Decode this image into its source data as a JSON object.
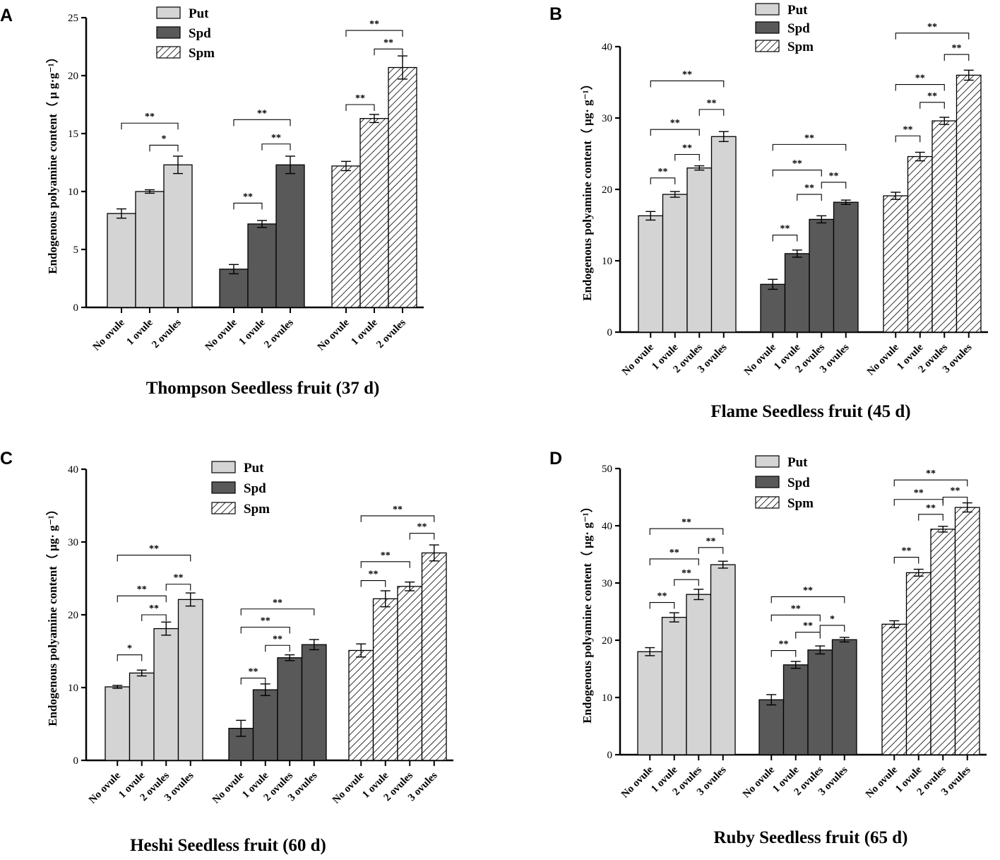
{
  "figure": {
    "panel_count": 4
  },
  "chart_data": [
    {
      "panel_label": "A",
      "type": "bar",
      "title": "Thompson Seedless fruit (37 d)",
      "ylabel": "Endogenous polyamine content（ μ g·g⁻¹）",
      "ylim": [
        0,
        25
      ],
      "yticks": [
        0,
        5,
        10,
        15,
        20,
        25
      ],
      "legend": [
        "Put",
        "Spd",
        "Spm"
      ],
      "legend_position": "top-center",
      "groups": [
        {
          "name": "Put",
          "categories": [
            "No ovule",
            "1 ovule",
            "2 ovules"
          ],
          "values": [
            8.1,
            10.0,
            12.3
          ],
          "errors": [
            0.4,
            0.15,
            0.75
          ],
          "sig": [
            {
              "from": 1,
              "to": 2,
              "label": "*",
              "y": 14.0
            },
            {
              "from": 0,
              "to": 2,
              "label": "**",
              "y": 15.9
            }
          ]
        },
        {
          "name": "Spd",
          "categories": [
            "No ovule",
            "1 ovule",
            "2 ovules"
          ],
          "values": [
            3.3,
            7.2,
            12.3
          ],
          "errors": [
            0.4,
            0.3,
            0.75
          ],
          "sig": [
            {
              "from": 0,
              "to": 1,
              "label": "**",
              "y": 9.0
            },
            {
              "from": 1,
              "to": 2,
              "label": "**",
              "y": 14.1
            },
            {
              "from": 0,
              "to": 2,
              "label": "**",
              "y": 16.2
            }
          ]
        },
        {
          "name": "Spm",
          "categories": [
            "No ovule",
            "1 ovule",
            "2 ovules"
          ],
          "values": [
            12.2,
            16.3,
            20.7
          ],
          "errors": [
            0.4,
            0.35,
            1.0
          ],
          "sig": [
            {
              "from": 0,
              "to": 1,
              "label": "**",
              "y": 17.5
            },
            {
              "from": 1,
              "to": 2,
              "label": "**",
              "y": 22.3
            },
            {
              "from": 0,
              "to": 2,
              "label": "**",
              "y": 23.9
            }
          ]
        }
      ]
    },
    {
      "panel_label": "B",
      "type": "bar",
      "title": "Flame Seedless fruit (45 d)",
      "ylabel": "Endogenous polyamine content（ μg· g⁻¹）",
      "ylim": [
        0,
        40
      ],
      "yticks": [
        0,
        10,
        20,
        30,
        40
      ],
      "legend": [
        "Put",
        "Spd",
        "Spm"
      ],
      "legend_position": "top-center",
      "groups": [
        {
          "name": "Put",
          "categories": [
            "No ovule",
            "1 ovule",
            "2 ovules",
            "3 ovules"
          ],
          "values": [
            16.3,
            19.3,
            23.0,
            27.4
          ],
          "errors": [
            0.6,
            0.4,
            0.3,
            0.7
          ],
          "sig": [
            {
              "from": 0,
              "to": 1,
              "label": "**",
              "y": 21.6
            },
            {
              "from": 1,
              "to": 2,
              "label": "**",
              "y": 24.9
            },
            {
              "from": 0,
              "to": 2,
              "label": "**",
              "y": 28.4
            },
            {
              "from": 2,
              "to": 3,
              "label": "**",
              "y": 31.2
            },
            {
              "from": 0,
              "to": 3,
              "label": "**",
              "y": 35.2
            }
          ]
        },
        {
          "name": "Spd",
          "categories": [
            "No ovule",
            "1 ovule",
            "2 ovules",
            "3 ovules"
          ],
          "values": [
            6.7,
            11.0,
            15.8,
            18.2
          ],
          "errors": [
            0.7,
            0.5,
            0.5,
            0.3
          ],
          "sig": [
            {
              "from": 0,
              "to": 1,
              "label": "**",
              "y": 13.6
            },
            {
              "from": 1,
              "to": 2,
              "label": "**",
              "y": 19.3
            },
            {
              "from": 2,
              "to": 3,
              "label": "**",
              "y": 21.0
            },
            {
              "from": 0,
              "to": 2,
              "label": "**",
              "y": 22.7
            },
            {
              "from": 0,
              "to": 3,
              "label": "**",
              "y": 26.3
            }
          ]
        },
        {
          "name": "Spm",
          "categories": [
            "No ovule",
            "1 ovule",
            "2 ovules",
            "3 ovules"
          ],
          "values": [
            19.1,
            24.6,
            29.6,
            36.0
          ],
          "errors": [
            0.5,
            0.6,
            0.5,
            0.7
          ],
          "sig": [
            {
              "from": 0,
              "to": 1,
              "label": "**",
              "y": 27.5
            },
            {
              "from": 1,
              "to": 2,
              "label": "**",
              "y": 32.2
            },
            {
              "from": 0,
              "to": 2,
              "label": "**",
              "y": 34.7
            },
            {
              "from": 2,
              "to": 3,
              "label": "**",
              "y": 38.9
            },
            {
              "from": 0,
              "to": 3,
              "label": "**",
              "y": 41.9
            }
          ]
        }
      ]
    },
    {
      "panel_label": "C",
      "type": "bar",
      "title": "Heshi Seedless fruit (60 d)",
      "ylabel": "Endogenous polyamine content（ μg· g⁻¹）",
      "ylim": [
        0,
        40
      ],
      "yticks": [
        0,
        10,
        20,
        30,
        40
      ],
      "legend": [
        "Put",
        "Spd",
        "Spm"
      ],
      "legend_position": "top-center",
      "groups": [
        {
          "name": "Put",
          "categories": [
            "No ovule",
            "1 ovule",
            "2 ovules",
            "3 ovules"
          ],
          "values": [
            10.1,
            12.0,
            18.1,
            22.1
          ],
          "errors": [
            0.2,
            0.4,
            0.9,
            0.9
          ],
          "sig": [
            {
              "from": 0,
              "to": 1,
              "label": "*",
              "y": 14.5
            },
            {
              "from": 1,
              "to": 2,
              "label": "**",
              "y": 20.0
            },
            {
              "from": 0,
              "to": 2,
              "label": "**",
              "y": 22.6
            },
            {
              "from": 2,
              "to": 3,
              "label": "**",
              "y": 24.2
            },
            {
              "from": 0,
              "to": 3,
              "label": "**",
              "y": 28.2
            }
          ]
        },
        {
          "name": "Spd",
          "categories": [
            "No ovule",
            "1 ovule",
            "2 ovules",
            "3 ovules"
          ],
          "values": [
            4.4,
            9.7,
            14.1,
            15.9
          ],
          "errors": [
            1.1,
            0.8,
            0.4,
            0.7
          ],
          "sig": [
            {
              "from": 0,
              "to": 1,
              "label": "**",
              "y": 11.3
            },
            {
              "from": 1,
              "to": 2,
              "label": "**",
              "y": 15.8
            },
            {
              "from": 0,
              "to": 2,
              "label": "**",
              "y": 18.3
            },
            {
              "from": 0,
              "to": 3,
              "label": "**",
              "y": 20.8
            }
          ]
        },
        {
          "name": "Spm",
          "categories": [
            "No ovule",
            "1 ovule",
            "2 ovules",
            "3 ovules"
          ],
          "values": [
            15.1,
            22.2,
            23.9,
            28.5
          ],
          "errors": [
            0.9,
            1.1,
            0.6,
            1.1
          ],
          "sig": [
            {
              "from": 0,
              "to": 1,
              "label": "**",
              "y": 24.7
            },
            {
              "from": 0,
              "to": 2,
              "label": "**",
              "y": 27.3
            },
            {
              "from": 2,
              "to": 3,
              "label": "**",
              "y": 31.2
            },
            {
              "from": 0,
              "to": 3,
              "label": "**",
              "y": 33.6
            }
          ]
        }
      ]
    },
    {
      "panel_label": "D",
      "type": "bar",
      "title": "Ruby Seedless fruit (65 d)",
      "ylabel": "Endogenous polyamine content（ μg· g⁻¹）",
      "ylim": [
        0,
        50
      ],
      "yticks": [
        0,
        10,
        20,
        30,
        40,
        50
      ],
      "legend": [
        "Put",
        "Spd",
        "Spm"
      ],
      "legend_position": "top-center",
      "groups": [
        {
          "name": "Put",
          "categories": [
            "No ovule",
            "1 ovule",
            "2 ovules",
            "3 ovules"
          ],
          "values": [
            18.0,
            24.0,
            28.0,
            33.2
          ],
          "errors": [
            0.7,
            0.8,
            0.9,
            0.6
          ],
          "sig": [
            {
              "from": 0,
              "to": 1,
              "label": "**",
              "y": 26.6
            },
            {
              "from": 1,
              "to": 2,
              "label": "**",
              "y": 30.6
            },
            {
              "from": 0,
              "to": 2,
              "label": "**",
              "y": 34.2
            },
            {
              "from": 2,
              "to": 3,
              "label": "**",
              "y": 36.2
            },
            {
              "from": 0,
              "to": 3,
              "label": "**",
              "y": 39.5
            }
          ]
        },
        {
          "name": "Spd",
          "categories": [
            "No ovule",
            "1 ovule",
            "2 ovules",
            "3 ovules"
          ],
          "values": [
            9.6,
            15.7,
            18.3,
            20.1
          ],
          "errors": [
            0.9,
            0.6,
            0.7,
            0.4
          ],
          "sig": [
            {
              "from": 0,
              "to": 1,
              "label": "**",
              "y": 18.2
            },
            {
              "from": 1,
              "to": 2,
              "label": "**",
              "y": 21.4
            },
            {
              "from": 2,
              "to": 3,
              "label": "*",
              "y": 22.6
            },
            {
              "from": 0,
              "to": 2,
              "label": "**",
              "y": 24.4
            },
            {
              "from": 0,
              "to": 3,
              "label": "**",
              "y": 27.6
            }
          ]
        },
        {
          "name": "Spm",
          "categories": [
            "No ovule",
            "1 ovule",
            "2 ovules",
            "3 ovules"
          ],
          "values": [
            22.8,
            31.8,
            39.4,
            43.2
          ],
          "errors": [
            0.6,
            0.6,
            0.5,
            0.8
          ],
          "sig": [
            {
              "from": 0,
              "to": 1,
              "label": "**",
              "y": 34.5
            },
            {
              "from": 1,
              "to": 2,
              "label": "**",
              "y": 42.0
            },
            {
              "from": 2,
              "to": 3,
              "label": "**",
              "y": 45.0
            },
            {
              "from": 0,
              "to": 2,
              "label": "**",
              "y": 44.6
            },
            {
              "from": 0,
              "to": 3,
              "label": "**",
              "y": 48.0
            }
          ]
        }
      ]
    }
  ]
}
